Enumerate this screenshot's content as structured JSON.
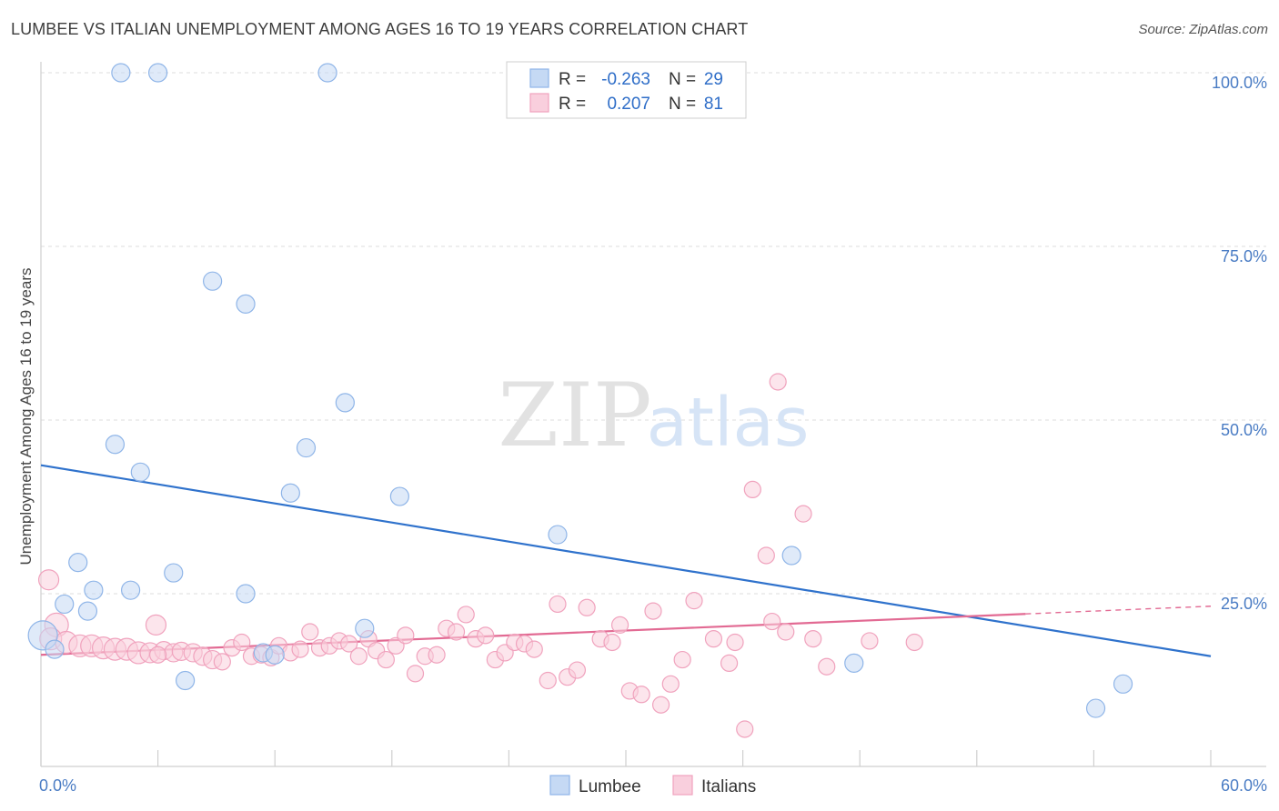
{
  "title": "LUMBEE VS ITALIAN UNEMPLOYMENT AMONG AGES 16 TO 19 YEARS CORRELATION CHART",
  "source": "Source: ZipAtlas.com",
  "watermark": {
    "zip": "ZIP",
    "atlas": "atlas"
  },
  "colors": {
    "lumbee": "#8fb5e8",
    "lumbee_fill": "#c5d9f4",
    "lumbee_line": "#2f72cc",
    "italians": "#f0a2bd",
    "italians_fill": "#f9cfdd",
    "italians_line": "#e26a93",
    "tick_text": "#4a7cc4",
    "grid": "#dcdcdc"
  },
  "legend": {
    "rows": [
      {
        "r_label": "R =",
        "r_value": "-0.263",
        "n_label": "N =",
        "n_value": "29"
      },
      {
        "r_label": "R =",
        "r_value": "0.207",
        "n_label": "N =",
        "n_value": "81"
      }
    ]
  },
  "chart_data": {
    "type": "scatter",
    "title": "LUMBEE VS ITALIAN UNEMPLOYMENT AMONG AGES 16 TO 19 YEARS CORRELATION CHART",
    "xlabel": "",
    "ylabel": "Unemployment Among Ages 16 to 19 years",
    "xlim": [
      0,
      60
    ],
    "ylim": [
      0,
      105
    ],
    "x_tick_labels": [
      "0.0%",
      "60.0%"
    ],
    "y_ticks": [
      25,
      50,
      75,
      100
    ],
    "y_tick_labels": [
      "25.0%",
      "50.0%",
      "75.0%",
      "100.0%"
    ],
    "grid": true,
    "legend_position": "top-center",
    "series": [
      {
        "name": "Lumbee",
        "r": -0.263,
        "n": 29,
        "trend": {
          "x": [
            0,
            60
          ],
          "y": [
            43.5,
            16.0
          ],
          "dashed_from": null
        },
        "points": [
          {
            "x": 4.1,
            "y": 100,
            "s": 10
          },
          {
            "x": 6.0,
            "y": 100,
            "s": 10
          },
          {
            "x": 14.7,
            "y": 100,
            "s": 10
          },
          {
            "x": 8.8,
            "y": 70,
            "s": 10
          },
          {
            "x": 10.5,
            "y": 66.7,
            "s": 10
          },
          {
            "x": 15.6,
            "y": 52.5,
            "s": 10
          },
          {
            "x": 3.8,
            "y": 46.5,
            "s": 10
          },
          {
            "x": 13.6,
            "y": 46,
            "s": 10
          },
          {
            "x": 5.1,
            "y": 42.5,
            "s": 10
          },
          {
            "x": 12.8,
            "y": 39.5,
            "s": 10
          },
          {
            "x": 18.4,
            "y": 39,
            "s": 10
          },
          {
            "x": 26.5,
            "y": 33.5,
            "s": 10
          },
          {
            "x": 38.5,
            "y": 30.5,
            "s": 10
          },
          {
            "x": 1.9,
            "y": 29.5,
            "s": 10
          },
          {
            "x": 6.8,
            "y": 28,
            "s": 10
          },
          {
            "x": 2.7,
            "y": 25.5,
            "s": 10
          },
          {
            "x": 4.6,
            "y": 25.5,
            "s": 10
          },
          {
            "x": 10.5,
            "y": 25,
            "s": 10
          },
          {
            "x": 1.2,
            "y": 23.5,
            "s": 10
          },
          {
            "x": 2.4,
            "y": 22.5,
            "s": 10
          },
          {
            "x": 16.6,
            "y": 20,
            "s": 10
          },
          {
            "x": 0.1,
            "y": 19,
            "s": 16
          },
          {
            "x": 0.7,
            "y": 17,
            "s": 10
          },
          {
            "x": 11.4,
            "y": 16.5,
            "s": 10
          },
          {
            "x": 12.0,
            "y": 16.2,
            "s": 10
          },
          {
            "x": 7.4,
            "y": 12.5,
            "s": 10
          },
          {
            "x": 41.7,
            "y": 15,
            "s": 10
          },
          {
            "x": 55.5,
            "y": 12,
            "s": 10
          },
          {
            "x": 54.1,
            "y": 8.5,
            "s": 10
          }
        ]
      },
      {
        "name": "Italians",
        "r": 0.207,
        "n": 81,
        "trend": {
          "x": [
            0,
            60
          ],
          "y": [
            16.2,
            23.2
          ],
          "dashed_from": 50.5
        },
        "points": [
          {
            "x": 0.4,
            "y": 27,
            "s": 11
          },
          {
            "x": 0.8,
            "y": 20.5,
            "s": 13
          },
          {
            "x": 0.5,
            "y": 18.5,
            "s": 12
          },
          {
            "x": 1.3,
            "y": 18,
            "s": 12
          },
          {
            "x": 2.0,
            "y": 17.5,
            "s": 12
          },
          {
            "x": 2.6,
            "y": 17.5,
            "s": 12
          },
          {
            "x": 3.2,
            "y": 17.2,
            "s": 12
          },
          {
            "x": 3.8,
            "y": 17,
            "s": 12
          },
          {
            "x": 4.4,
            "y": 17,
            "s": 12
          },
          {
            "x": 5.0,
            "y": 16.5,
            "s": 12
          },
          {
            "x": 5.6,
            "y": 16.5,
            "s": 11
          },
          {
            "x": 5.9,
            "y": 20.5,
            "s": 11
          },
          {
            "x": 6.3,
            "y": 16.8,
            "s": 10
          },
          {
            "x": 6.8,
            "y": 16.5,
            "s": 10
          },
          {
            "x": 7.2,
            "y": 16.7,
            "s": 10
          },
          {
            "x": 7.8,
            "y": 16.5,
            "s": 10
          },
          {
            "x": 8.3,
            "y": 16,
            "s": 10
          },
          {
            "x": 8.8,
            "y": 15.5,
            "s": 10
          },
          {
            "x": 9.3,
            "y": 15.2,
            "s": 9
          },
          {
            "x": 9.8,
            "y": 17.2,
            "s": 9
          },
          {
            "x": 10.3,
            "y": 18,
            "s": 9
          },
          {
            "x": 10.8,
            "y": 16,
            "s": 9
          },
          {
            "x": 11.3,
            "y": 16.2,
            "s": 9
          },
          {
            "x": 11.8,
            "y": 15.8,
            "s": 9
          },
          {
            "x": 12.2,
            "y": 17.5,
            "s": 9
          },
          {
            "x": 12.8,
            "y": 16.5,
            "s": 9
          },
          {
            "x": 13.3,
            "y": 17,
            "s": 9
          },
          {
            "x": 13.8,
            "y": 19.5,
            "s": 9
          },
          {
            "x": 14.3,
            "y": 17.2,
            "s": 9
          },
          {
            "x": 14.8,
            "y": 17.5,
            "s": 9
          },
          {
            "x": 15.3,
            "y": 18.2,
            "s": 9
          },
          {
            "x": 15.8,
            "y": 17.8,
            "s": 9
          },
          {
            "x": 16.3,
            "y": 16,
            "s": 9
          },
          {
            "x": 16.8,
            "y": 18.5,
            "s": 9
          },
          {
            "x": 17.2,
            "y": 16.8,
            "s": 9
          },
          {
            "x": 17.7,
            "y": 15.5,
            "s": 9
          },
          {
            "x": 18.2,
            "y": 17.5,
            "s": 9
          },
          {
            "x": 18.7,
            "y": 19,
            "s": 9
          },
          {
            "x": 19.2,
            "y": 13.5,
            "s": 9
          },
          {
            "x": 19.7,
            "y": 16,
            "s": 9
          },
          {
            "x": 20.3,
            "y": 16.2,
            "s": 9
          },
          {
            "x": 20.8,
            "y": 20,
            "s": 9
          },
          {
            "x": 21.3,
            "y": 19.5,
            "s": 9
          },
          {
            "x": 21.8,
            "y": 22,
            "s": 9
          },
          {
            "x": 22.3,
            "y": 18.5,
            "s": 9
          },
          {
            "x": 22.8,
            "y": 19,
            "s": 9
          },
          {
            "x": 23.3,
            "y": 15.5,
            "s": 9
          },
          {
            "x": 23.8,
            "y": 16.5,
            "s": 9
          },
          {
            "x": 24.3,
            "y": 18,
            "s": 9
          },
          {
            "x": 24.8,
            "y": 17.8,
            "s": 9
          },
          {
            "x": 25.3,
            "y": 17,
            "s": 9
          },
          {
            "x": 26.0,
            "y": 12.5,
            "s": 9
          },
          {
            "x": 26.5,
            "y": 23.5,
            "s": 9
          },
          {
            "x": 27.0,
            "y": 13,
            "s": 9
          },
          {
            "x": 27.5,
            "y": 14,
            "s": 9
          },
          {
            "x": 28.0,
            "y": 23,
            "s": 9
          },
          {
            "x": 28.7,
            "y": 18.5,
            "s": 9
          },
          {
            "x": 29.3,
            "y": 18,
            "s": 9
          },
          {
            "x": 29.7,
            "y": 20.5,
            "s": 9
          },
          {
            "x": 30.2,
            "y": 11,
            "s": 9
          },
          {
            "x": 30.8,
            "y": 10.5,
            "s": 9
          },
          {
            "x": 31.4,
            "y": 22.5,
            "s": 9
          },
          {
            "x": 31.8,
            "y": 9,
            "s": 9
          },
          {
            "x": 32.3,
            "y": 12,
            "s": 9
          },
          {
            "x": 32.9,
            "y": 15.5,
            "s": 9
          },
          {
            "x": 33.5,
            "y": 24,
            "s": 9
          },
          {
            "x": 34.5,
            "y": 18.5,
            "s": 9
          },
          {
            "x": 35.3,
            "y": 15,
            "s": 9
          },
          {
            "x": 35.6,
            "y": 18,
            "s": 9
          },
          {
            "x": 36.1,
            "y": 5.5,
            "s": 9
          },
          {
            "x": 36.5,
            "y": 40,
            "s": 9
          },
          {
            "x": 37.2,
            "y": 30.5,
            "s": 9
          },
          {
            "x": 37.8,
            "y": 55.5,
            "s": 9
          },
          {
            "x": 37.5,
            "y": 21,
            "s": 9
          },
          {
            "x": 38.2,
            "y": 19.5,
            "s": 9
          },
          {
            "x": 39.1,
            "y": 36.5,
            "s": 9
          },
          {
            "x": 39.6,
            "y": 18.5,
            "s": 9
          },
          {
            "x": 40.3,
            "y": 14.5,
            "s": 9
          },
          {
            "x": 42.5,
            "y": 18.2,
            "s": 9
          },
          {
            "x": 44.8,
            "y": 18,
            "s": 9
          },
          {
            "x": 6.0,
            "y": 16.2,
            "s": 9
          }
        ]
      }
    ]
  },
  "bottom_legend": [
    {
      "label": "Lumbee"
    },
    {
      "label": "Italians"
    }
  ]
}
